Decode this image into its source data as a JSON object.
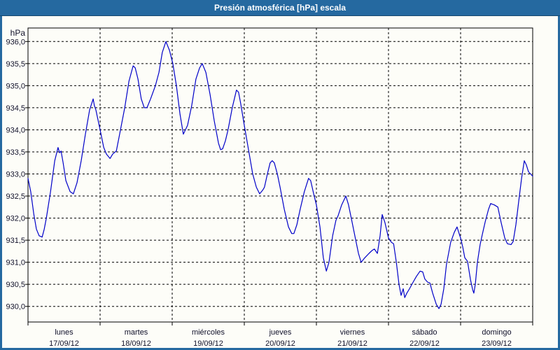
{
  "window": {
    "title": "Presión atmosférica [hPa] escala"
  },
  "colors": {
    "titlebar": "#2569a0",
    "titlebar_underline": "#17486f",
    "frame_border": "#2569a0",
    "title_text": "#ffffff",
    "background": "#fdfdf8",
    "grid": "#000000",
    "axis": "#000000",
    "label": "#10102a",
    "line": "#0000c8"
  },
  "chart_data": {
    "type": "line",
    "title": "Presión atmosférica [hPa] escala",
    "y_unit": "hPa",
    "grid": "dashed",
    "legend": "none",
    "y_axis": {
      "max": 936.0,
      "min": 930.0,
      "step": 0.5,
      "tick_labels": [
        "936,0",
        "935,5",
        "935,0",
        "934,5",
        "934,0",
        "933,5",
        "933,0",
        "932,5",
        "932,0",
        "931,5",
        "931,0",
        "930,5",
        "930,0"
      ]
    },
    "x_axis": {
      "hours_total": 168,
      "days": [
        {
          "name": "lunes",
          "date": "17/09/12"
        },
        {
          "name": "martes",
          "date": "18/09/12"
        },
        {
          "name": "miércoles",
          "date": "19/09/12"
        },
        {
          "name": "jueves",
          "date": "20/09/12"
        },
        {
          "name": "viernes",
          "date": "21/09/12"
        },
        {
          "name": "sábado",
          "date": "22/09/12"
        },
        {
          "name": "domingo",
          "date": "23/09/12"
        }
      ]
    },
    "series": [
      {
        "name": "Presión atmosférica",
        "color": "#0000c8",
        "points_hours_value": [
          [
            0,
            932.9
          ],
          [
            0.9,
            932.6
          ],
          [
            1.9,
            932.1
          ],
          [
            2.8,
            931.75
          ],
          [
            3.7,
            931.6
          ],
          [
            4.7,
            931.57
          ],
          [
            5.4,
            931.75
          ],
          [
            6.1,
            932.0
          ],
          [
            7.5,
            932.6
          ],
          [
            8.9,
            933.3
          ],
          [
            10,
            933.6
          ],
          [
            10.5,
            933.48
          ],
          [
            11,
            933.52
          ],
          [
            11.7,
            933.25
          ],
          [
            12.6,
            932.85
          ],
          [
            14,
            932.6
          ],
          [
            15.1,
            932.55
          ],
          [
            16.3,
            932.8
          ],
          [
            17.7,
            933.3
          ],
          [
            19.1,
            933.9
          ],
          [
            20.5,
            934.45
          ],
          [
            21.7,
            934.7
          ],
          [
            22.1,
            934.55
          ],
          [
            22.6,
            934.45
          ],
          [
            24,
            934.0
          ],
          [
            25.2,
            933.6
          ],
          [
            26.1,
            933.45
          ],
          [
            27.3,
            933.35
          ],
          [
            28.2,
            933.45
          ],
          [
            29.4,
            933.52
          ],
          [
            30.5,
            933.9
          ],
          [
            32.2,
            934.5
          ],
          [
            33.6,
            935.1
          ],
          [
            35,
            935.45
          ],
          [
            35.7,
            935.4
          ],
          [
            36.6,
            935.15
          ],
          [
            37.7,
            934.7
          ],
          [
            38.7,
            934.5
          ],
          [
            39.6,
            934.5
          ],
          [
            40.8,
            934.7
          ],
          [
            42.4,
            935.0
          ],
          [
            43.6,
            935.3
          ],
          [
            44.7,
            935.75
          ],
          [
            45.9,
            936.0
          ],
          [
            47.1,
            935.8
          ],
          [
            48.2,
            935.5
          ],
          [
            49.4,
            935.0
          ],
          [
            50.6,
            934.35
          ],
          [
            51.7,
            933.9
          ],
          [
            53.1,
            934.1
          ],
          [
            54.5,
            934.55
          ],
          [
            55.9,
            935.15
          ],
          [
            57.1,
            935.4
          ],
          [
            58,
            935.5
          ],
          [
            59.2,
            935.3
          ],
          [
            60.6,
            934.8
          ],
          [
            62,
            934.2
          ],
          [
            63.4,
            933.7
          ],
          [
            64.1,
            933.55
          ],
          [
            64.8,
            933.57
          ],
          [
            65.7,
            933.75
          ],
          [
            66.6,
            934.0
          ],
          [
            68,
            934.5
          ],
          [
            69.4,
            934.9
          ],
          [
            70.1,
            934.85
          ],
          [
            70.8,
            934.6
          ],
          [
            72,
            934.1
          ],
          [
            73.4,
            933.55
          ],
          [
            74.8,
            933.0
          ],
          [
            76,
            932.7
          ],
          [
            77.1,
            932.55
          ],
          [
            78.1,
            932.63
          ],
          [
            78.7,
            932.7
          ],
          [
            79.7,
            933.0
          ],
          [
            80.6,
            933.25
          ],
          [
            81.3,
            933.3
          ],
          [
            82,
            933.25
          ],
          [
            83,
            933.0
          ],
          [
            83.9,
            932.7
          ],
          [
            85.3,
            932.2
          ],
          [
            86.7,
            931.8
          ],
          [
            87.8,
            931.65
          ],
          [
            88.5,
            931.65
          ],
          [
            89.5,
            931.85
          ],
          [
            90.6,
            932.2
          ],
          [
            92,
            932.6
          ],
          [
            93.4,
            932.9
          ],
          [
            94.1,
            932.85
          ],
          [
            95.1,
            932.55
          ],
          [
            96,
            932.3
          ],
          [
            97.2,
            931.8
          ],
          [
            98.3,
            931.1
          ],
          [
            99.3,
            930.8
          ],
          [
            100.2,
            931.0
          ],
          [
            101.4,
            931.6
          ],
          [
            102.5,
            931.95
          ],
          [
            103.2,
            932.05
          ],
          [
            104.4,
            932.3
          ],
          [
            105.8,
            932.5
          ],
          [
            106.7,
            932.3
          ],
          [
            107.9,
            931.9
          ],
          [
            109.1,
            931.5
          ],
          [
            110,
            931.2
          ],
          [
            110.9,
            931.0
          ],
          [
            112.1,
            931.1
          ],
          [
            113.5,
            931.2
          ],
          [
            114.6,
            931.27
          ],
          [
            115.3,
            931.3
          ],
          [
            116.3,
            931.2
          ],
          [
            117.2,
            931.6
          ],
          [
            117.9,
            932.08
          ],
          [
            118.8,
            931.9
          ],
          [
            120,
            931.55
          ],
          [
            121,
            931.45
          ],
          [
            121.7,
            931.42
          ],
          [
            122.6,
            931.0
          ],
          [
            123.5,
            930.5
          ],
          [
            124.2,
            930.25
          ],
          [
            124.9,
            930.4
          ],
          [
            125.4,
            930.2
          ],
          [
            126.1,
            930.3
          ],
          [
            127,
            930.4
          ],
          [
            128.2,
            930.55
          ],
          [
            129.3,
            930.68
          ],
          [
            130.5,
            930.8
          ],
          [
            131.4,
            930.78
          ],
          [
            132.1,
            930.62
          ],
          [
            133,
            930.55
          ],
          [
            133.8,
            930.53
          ],
          [
            134.7,
            930.3
          ],
          [
            135.9,
            930.05
          ],
          [
            136.8,
            929.95
          ],
          [
            137.5,
            930.05
          ],
          [
            138.4,
            930.4
          ],
          [
            139.3,
            930.95
          ],
          [
            140.7,
            931.45
          ],
          [
            141.9,
            931.68
          ],
          [
            142.8,
            931.8
          ],
          [
            143.5,
            931.65
          ],
          [
            144,
            931.55
          ],
          [
            144.7,
            931.35
          ],
          [
            145.4,
            931.1
          ],
          [
            146.3,
            931.02
          ],
          [
            147.3,
            930.6
          ],
          [
            148,
            930.38
          ],
          [
            148.4,
            930.3
          ],
          [
            148.9,
            930.5
          ],
          [
            149.6,
            931.0
          ],
          [
            150.5,
            931.4
          ],
          [
            151.2,
            931.62
          ],
          [
            152.2,
            931.92
          ],
          [
            153.3,
            932.2
          ],
          [
            154,
            932.33
          ],
          [
            155.2,
            932.3
          ],
          [
            156.4,
            932.25
          ],
          [
            157.5,
            931.9
          ],
          [
            158.7,
            931.55
          ],
          [
            159.6,
            931.42
          ],
          [
            160.8,
            931.4
          ],
          [
            161.5,
            931.47
          ],
          [
            162.4,
            931.85
          ],
          [
            163.3,
            932.35
          ],
          [
            164.3,
            932.9
          ],
          [
            165.2,
            933.3
          ],
          [
            165.9,
            933.2
          ],
          [
            166.6,
            933.05
          ],
          [
            167.3,
            933.0
          ],
          [
            168,
            932.95
          ]
        ]
      }
    ]
  }
}
